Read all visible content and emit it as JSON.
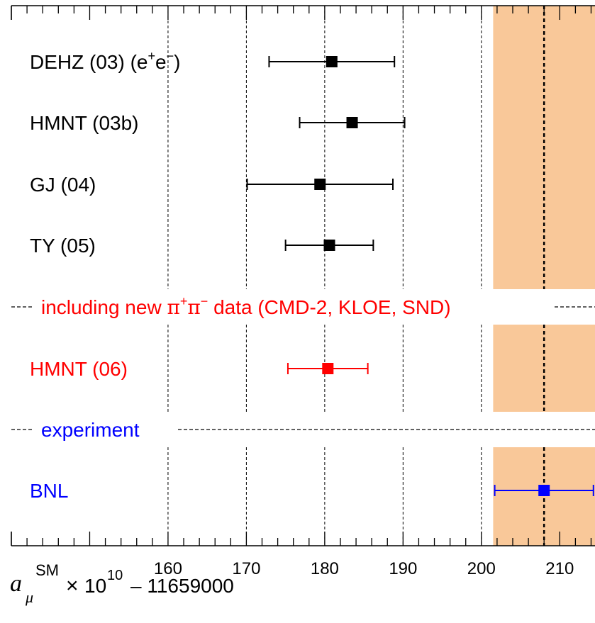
{
  "chart_data": {
    "type": "scatter",
    "title": "",
    "xlabel": {
      "symbol": "a",
      "subscript": "μ",
      "superscript": "SM",
      "times": "×",
      "base": "10",
      "exponent": "10",
      "rest": "– 11659000"
    },
    "xlim": [
      140,
      214.5
    ],
    "xticks": [
      160,
      170,
      180,
      190,
      200,
      210
    ],
    "xtick_labels": [
      "160",
      "170",
      "180",
      "190",
      "200",
      "210"
    ],
    "minor_tick_step": 2,
    "grid": "vertical dashed at 160, 170, 180, 190, 200",
    "band": {
      "range": [
        201.5,
        214.5
      ],
      "center": 208,
      "color": "#f9c899"
    },
    "series": [
      {
        "label_text": "DEHZ (03)",
        "label_suffix": {
          "open": " (e",
          "sup1": "+",
          "mid": "e",
          "sup2": "−",
          "close": ")"
        },
        "value": 180.9,
        "err_low": 8.0,
        "err_high": 8.0,
        "color": "#000000"
      },
      {
        "label_text": "HMNT (03b)",
        "value": 183.5,
        "err_low": 6.7,
        "err_high": 6.7,
        "color": "#000000"
      },
      {
        "label_text": "GJ (04)",
        "value": 179.4,
        "err_low": 9.3,
        "err_high": 9.3,
        "color": "#000000"
      },
      {
        "label_text": "TY (05)",
        "value": 180.6,
        "err_low": 5.6,
        "err_high": 5.6,
        "color": "#000000"
      },
      {
        "label_text": "HMNT (06)",
        "value": 180.4,
        "err_low": 5.1,
        "err_high": 5.1,
        "color": "#ff0000"
      },
      {
        "label_text": "BNL",
        "value": 208.0,
        "err_low": 6.3,
        "err_high": 6.3,
        "color": "#0000ff"
      }
    ],
    "sections": [
      {
        "pre": "including new ",
        "pi": "π",
        "sup1": "+",
        "sup2": "−",
        "post": " data (CMD-2, KLOE, SND)",
        "color": "#ff0000"
      },
      {
        "text": "experiment",
        "color": "#0000ff"
      }
    ]
  }
}
